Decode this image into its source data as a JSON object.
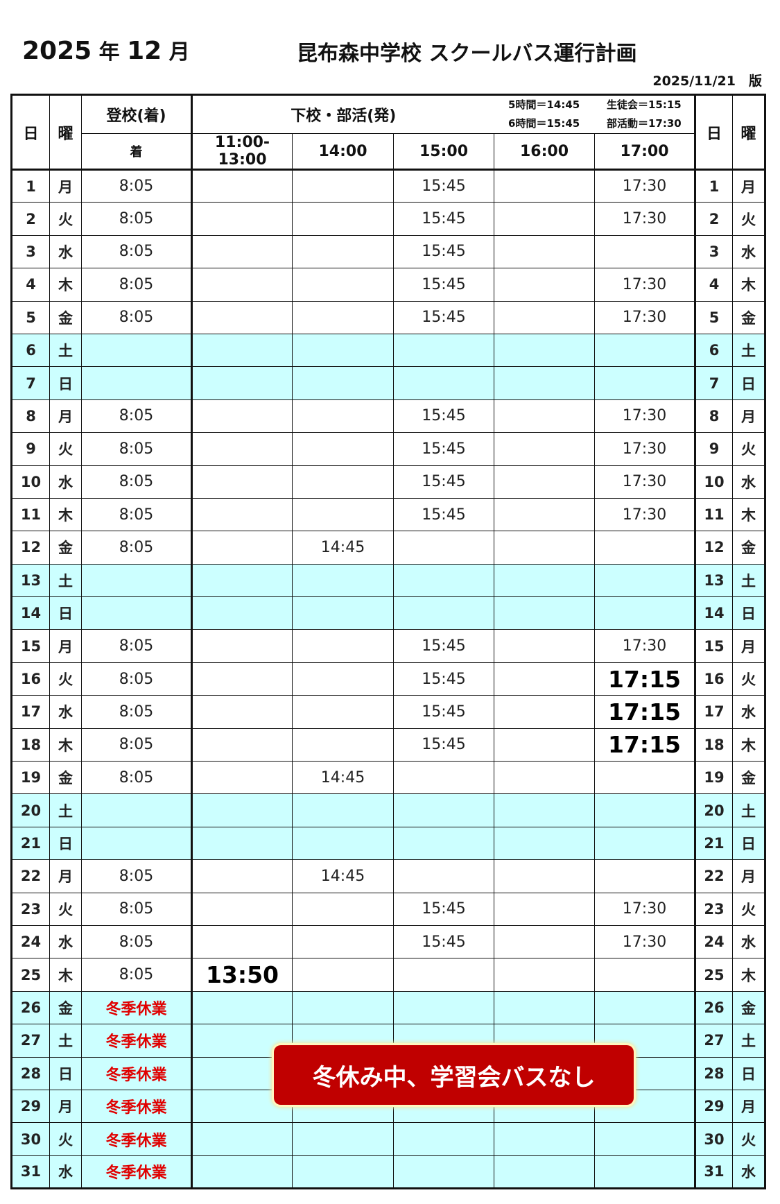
{
  "header": {
    "year": "2025",
    "year_unit": "年",
    "month": "12",
    "month_unit": "月",
    "title": "昆布森中学校 スクールバス運行計画",
    "version": "2025/11/21　版"
  },
  "table": {
    "col_day": "日",
    "col_weekday": "曜",
    "col_arrival": "登校(着)",
    "col_arrival_sub": "着",
    "col_departure": "下校・部活(発)",
    "notes": [
      "5時間＝14:45",
      "生徒会＝15:15",
      "6時間＝15:45",
      "部活動＝17:30"
    ],
    "time_cols": [
      "11:00-13:00",
      "14:00",
      "15:00",
      "16:00",
      "17:00"
    ],
    "rows": [
      {
        "d": "1",
        "w": "月",
        "a": "8:05",
        "t": [
          "",
          "",
          "15:45",
          "",
          "17:30"
        ]
      },
      {
        "d": "2",
        "w": "火",
        "a": "8:05",
        "t": [
          "",
          "",
          "15:45",
          "",
          "17:30"
        ]
      },
      {
        "d": "3",
        "w": "水",
        "a": "8:05",
        "t": [
          "",
          "",
          "15:45",
          "",
          ""
        ]
      },
      {
        "d": "4",
        "w": "木",
        "a": "8:05",
        "t": [
          "",
          "",
          "15:45",
          "",
          "17:30"
        ]
      },
      {
        "d": "5",
        "w": "金",
        "a": "8:05",
        "t": [
          "",
          "",
          "15:45",
          "",
          "17:30"
        ]
      },
      {
        "d": "6",
        "w": "土",
        "a": "",
        "t": [
          "",
          "",
          "",
          "",
          ""
        ],
        "holiday": true
      },
      {
        "d": "7",
        "w": "日",
        "a": "",
        "t": [
          "",
          "",
          "",
          "",
          ""
        ],
        "holiday": true
      },
      {
        "d": "8",
        "w": "月",
        "a": "8:05",
        "t": [
          "",
          "",
          "15:45",
          "",
          "17:30"
        ]
      },
      {
        "d": "9",
        "w": "火",
        "a": "8:05",
        "t": [
          "",
          "",
          "15:45",
          "",
          "17:30"
        ]
      },
      {
        "d": "10",
        "w": "水",
        "a": "8:05",
        "t": [
          "",
          "",
          "15:45",
          "",
          "17:30"
        ]
      },
      {
        "d": "11",
        "w": "木",
        "a": "8:05",
        "t": [
          "",
          "",
          "15:45",
          "",
          "17:30"
        ]
      },
      {
        "d": "12",
        "w": "金",
        "a": "8:05",
        "t": [
          "",
          "14:45",
          "",
          "",
          ""
        ]
      },
      {
        "d": "13",
        "w": "土",
        "a": "",
        "t": [
          "",
          "",
          "",
          "",
          ""
        ],
        "holiday": true
      },
      {
        "d": "14",
        "w": "日",
        "a": "",
        "t": [
          "",
          "",
          "",
          "",
          ""
        ],
        "holiday": true
      },
      {
        "d": "15",
        "w": "月",
        "a": "8:05",
        "t": [
          "",
          "",
          "15:45",
          "",
          "17:30"
        ]
      },
      {
        "d": "16",
        "w": "火",
        "a": "8:05",
        "t": [
          "",
          "",
          "15:45",
          "",
          "17:15"
        ],
        "bold": [
          4
        ]
      },
      {
        "d": "17",
        "w": "水",
        "a": "8:05",
        "t": [
          "",
          "",
          "15:45",
          "",
          "17:15"
        ],
        "bold": [
          4
        ]
      },
      {
        "d": "18",
        "w": "木",
        "a": "8:05",
        "t": [
          "",
          "",
          "15:45",
          "",
          "17:15"
        ],
        "bold": [
          4
        ]
      },
      {
        "d": "19",
        "w": "金",
        "a": "8:05",
        "t": [
          "",
          "14:45",
          "",
          "",
          ""
        ]
      },
      {
        "d": "20",
        "w": "土",
        "a": "",
        "t": [
          "",
          "",
          "",
          "",
          ""
        ],
        "holiday": true
      },
      {
        "d": "21",
        "w": "日",
        "a": "",
        "t": [
          "",
          "",
          "",
          "",
          ""
        ],
        "holiday": true
      },
      {
        "d": "22",
        "w": "月",
        "a": "8:05",
        "t": [
          "",
          "14:45",
          "",
          "",
          ""
        ]
      },
      {
        "d": "23",
        "w": "火",
        "a": "8:05",
        "t": [
          "",
          "",
          "15:45",
          "",
          "17:30"
        ]
      },
      {
        "d": "24",
        "w": "水",
        "a": "8:05",
        "t": [
          "",
          "",
          "15:45",
          "",
          "17:30"
        ]
      },
      {
        "d": "25",
        "w": "木",
        "a": "8:05",
        "t": [
          "13:50",
          "",
          "",
          "",
          ""
        ],
        "bold": [
          0
        ]
      },
      {
        "d": "26",
        "w": "金",
        "a": "冬季休業",
        "t": [
          "",
          "",
          "",
          "",
          ""
        ],
        "holiday": true,
        "red": true
      },
      {
        "d": "27",
        "w": "土",
        "a": "冬季休業",
        "t": [
          "",
          "",
          "",
          "",
          ""
        ],
        "holiday": true,
        "red": true
      },
      {
        "d": "28",
        "w": "日",
        "a": "冬季休業",
        "t": [
          "",
          "",
          "",
          "",
          ""
        ],
        "holiday": true,
        "red": true
      },
      {
        "d": "29",
        "w": "月",
        "a": "冬季休業",
        "t": [
          "",
          "",
          "",
          "",
          ""
        ],
        "holiday": true,
        "red": true
      },
      {
        "d": "30",
        "w": "火",
        "a": "冬季休業",
        "t": [
          "",
          "",
          "",
          "",
          ""
        ],
        "holiday": true,
        "red": true
      },
      {
        "d": "31",
        "w": "水",
        "a": "冬季休業",
        "t": [
          "",
          "",
          "",
          "",
          ""
        ],
        "holiday": true,
        "red": true
      }
    ]
  },
  "banner": "冬休み中、学習会バスなし",
  "colors": {
    "holiday": "#ccffff",
    "winter_text": "#e00000",
    "banner": "#c00000"
  }
}
